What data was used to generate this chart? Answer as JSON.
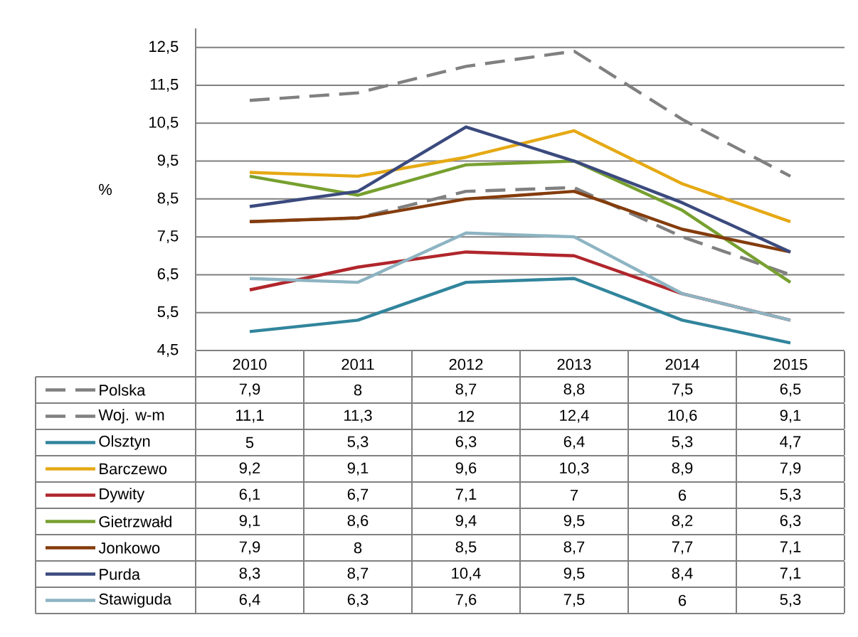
{
  "chart_data": {
    "type": "line",
    "ylabel": "%",
    "categories": [
      "2010",
      "2011",
      "2012",
      "2013",
      "2014",
      "2015"
    ],
    "ylim": [
      4.5,
      13
    ],
    "yticks": [
      {
        "value": 4.5,
        "label": "4,5"
      },
      {
        "value": 5.5,
        "label": "5,5"
      },
      {
        "value": 6.5,
        "label": "6,5"
      },
      {
        "value": 7.5,
        "label": "7,5"
      },
      {
        "value": 8.5,
        "label": "8,5"
      },
      {
        "value": 9.5,
        "label": "9,5"
      },
      {
        "value": 10.5,
        "label": "10,5"
      },
      {
        "value": 11.5,
        "label": "11,5"
      },
      {
        "value": 12.5,
        "label": "12,5"
      }
    ],
    "grid": "y",
    "marker": "none",
    "legend": "bottom left",
    "series": [
      {
        "name": "Polska",
        "color": "#808080",
        "line_style": "dashed",
        "values": [
          7.9,
          8,
          8.7,
          8.8,
          7.5,
          6.5
        ],
        "value_labels": [
          "7,9",
          "8",
          "8,7",
          "8,8",
          "7,5",
          "6,5"
        ]
      },
      {
        "name": "Woj. w-m",
        "color": "#808080",
        "line_style": "dashed",
        "values": [
          11.1,
          11.3,
          12,
          12.4,
          10.6,
          9.1
        ],
        "value_labels": [
          "11,1",
          "11,3",
          "12",
          "12,4",
          "10,6",
          "9,1"
        ]
      },
      {
        "name": "Olsztyn",
        "color": "#31859c",
        "values": [
          5,
          5.3,
          6.3,
          6.4,
          5.3,
          4.7
        ],
        "value_labels": [
          "5",
          "5,3",
          "6,3",
          "6,4",
          "5,3",
          "4,7"
        ]
      },
      {
        "name": "Barczewo",
        "color": "#e6a914",
        "values": [
          9.2,
          9.1,
          9.6,
          10.3,
          8.9,
          7.9
        ],
        "value_labels": [
          "9,2",
          "9,1",
          "9,6",
          "10,3",
          "8,9",
          "7,9"
        ]
      },
      {
        "name": "Dywity",
        "color": "#b0262c",
        "values": [
          6.1,
          6.7,
          7.1,
          7,
          6,
          5.3
        ],
        "value_labels": [
          "6,1",
          "6,7",
          "7,1",
          "7",
          "6",
          "5,3"
        ]
      },
      {
        "name": "Gietrzwałd",
        "color": "#77a02f",
        "values": [
          9.1,
          8.6,
          9.4,
          9.5,
          8.2,
          6.3
        ],
        "value_labels": [
          "9,1",
          "8,6",
          "9,4",
          "9,5",
          "8,2",
          "6,3"
        ]
      },
      {
        "name": "Jonkowo",
        "color": "#843c0c",
        "values": [
          7.9,
          8,
          8.5,
          8.7,
          7.7,
          7.1
        ],
        "value_labels": [
          "7,9",
          "8",
          "8,5",
          "8,7",
          "7,7",
          "7,1"
        ]
      },
      {
        "name": "Purda",
        "color": "#3b4a7e",
        "values": [
          8.3,
          8.7,
          10.4,
          9.5,
          8.4,
          7.1
        ],
        "value_labels": [
          "8,3",
          "8,7",
          "10,4",
          "9,5",
          "8,4",
          "7,1"
        ]
      },
      {
        "name": "Stawiguda",
        "color": "#8db4c2",
        "values": [
          6.4,
          6.3,
          7.6,
          7.5,
          6,
          5.3
        ],
        "value_labels": [
          "6,4",
          "6,3",
          "7,6",
          "7,5",
          "6",
          "5,3"
        ]
      }
    ]
  }
}
